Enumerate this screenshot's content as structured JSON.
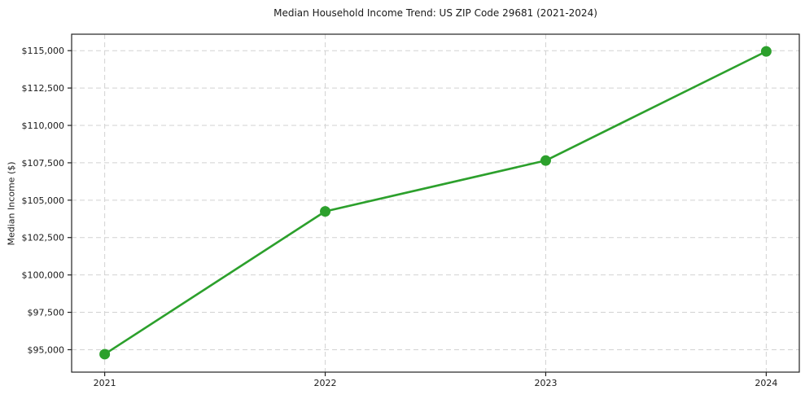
{
  "chart_data": {
    "type": "line",
    "title": "Median Household Income Trend: US ZIP Code 29681 (2021-2024)",
    "ylabel": "Median Income ($)",
    "xlabel": "",
    "categories": [
      "2021",
      "2022",
      "2023",
      "2024"
    ],
    "x": [
      2021,
      2022,
      2023,
      2024
    ],
    "series": [
      {
        "name": "Median Household Income",
        "values": [
          94700,
          104250,
          107650,
          114950
        ]
      }
    ],
    "ytick_values": [
      95000,
      97500,
      100000,
      102500,
      105000,
      107500,
      110000,
      112500,
      115000
    ],
    "ytick_labels": [
      "$95,000",
      "$97,500",
      "$100,000",
      "$102,500",
      "$105,000",
      "$107,500",
      "$110,000",
      "$112,500",
      "$115,000"
    ],
    "xlim": [
      2020.85,
      2024.15
    ],
    "ylim": [
      93500,
      116100
    ],
    "grid": true,
    "legend_position": "none",
    "line_color": "#2ca02c",
    "marker_color": "#2ca02c",
    "grid_color": "#d2d2d2",
    "axis_color": "#222222",
    "tick_text_color": "#1a1a1a"
  }
}
